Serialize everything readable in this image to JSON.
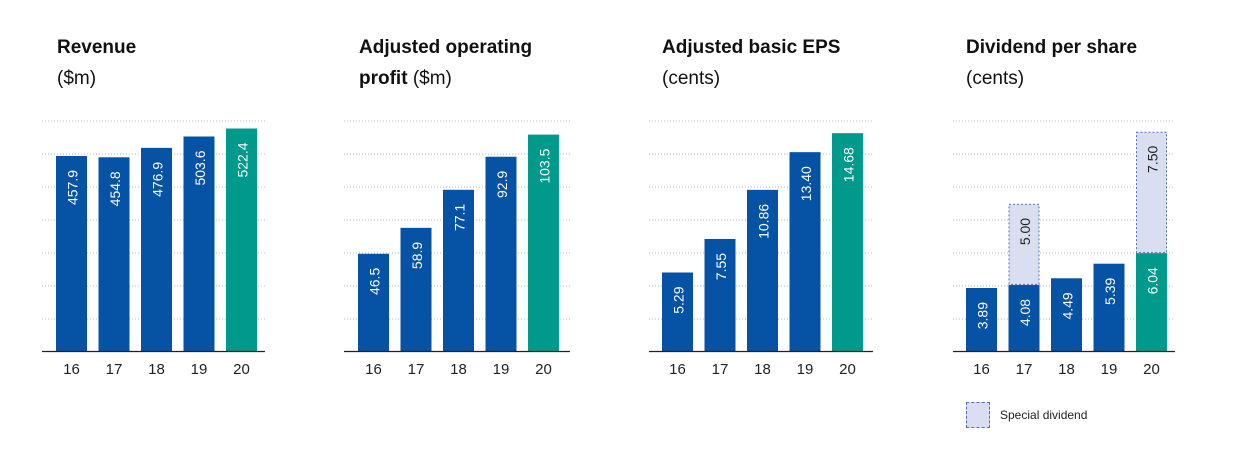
{
  "chart_data": [
    {
      "type": "bar",
      "title_bold": "Revenue",
      "title_normal": "($m)",
      "categories": [
        "16",
        "17",
        "18",
        "19",
        "20"
      ],
      "values": [
        457.9,
        454.8,
        476.9,
        503.6,
        522.4
      ],
      "labels": [
        "457.9",
        "454.8",
        "476.9",
        "503.6",
        "522.4"
      ],
      "ylim": [
        0,
        540
      ],
      "highlight_index": 4
    },
    {
      "type": "bar",
      "title_bold": "Adjusted operating profit",
      "title_normal": "($m)",
      "categories": [
        "16",
        "17",
        "18",
        "19",
        "20"
      ],
      "values": [
        46.5,
        58.9,
        77.1,
        92.9,
        103.5
      ],
      "labels": [
        "46.5",
        "58.9",
        "77.1",
        "92.9",
        "103.5"
      ],
      "ylim": [
        0,
        110
      ],
      "highlight_index": 4
    },
    {
      "type": "bar",
      "title_bold": "Adjusted basic EPS",
      "title_normal": "(cents)",
      "categories": [
        "16",
        "17",
        "18",
        "19",
        "20"
      ],
      "values": [
        5.29,
        7.55,
        10.86,
        13.4,
        14.68
      ],
      "labels": [
        "5.29",
        "7.55",
        "10.86",
        "13.40",
        "14.68"
      ],
      "ylim": [
        0,
        15.5
      ],
      "highlight_index": 4
    },
    {
      "type": "bar",
      "stacked": true,
      "title_bold": "Dividend per share",
      "title_normal": "(cents)",
      "categories": [
        "16",
        "17",
        "18",
        "19",
        "20"
      ],
      "values": [
        3.89,
        4.08,
        4.49,
        5.39,
        6.04
      ],
      "labels": [
        "3.89",
        "4.08",
        "4.49",
        "5.39",
        "6.04"
      ],
      "special": [
        0,
        5.0,
        0,
        0,
        7.5
      ],
      "special_labels": [
        "",
        "5.00",
        "",
        "",
        "7.50"
      ],
      "ylim": [
        0,
        14.2
      ],
      "highlight_index": 4,
      "legend": "Special dividend"
    }
  ],
  "colors": {
    "blue": "#0653a5",
    "green": "#009a8c",
    "special": "#d9dff0",
    "special_border": "#5470b5",
    "grid": "#9aa0a6",
    "axis": "#222222"
  }
}
